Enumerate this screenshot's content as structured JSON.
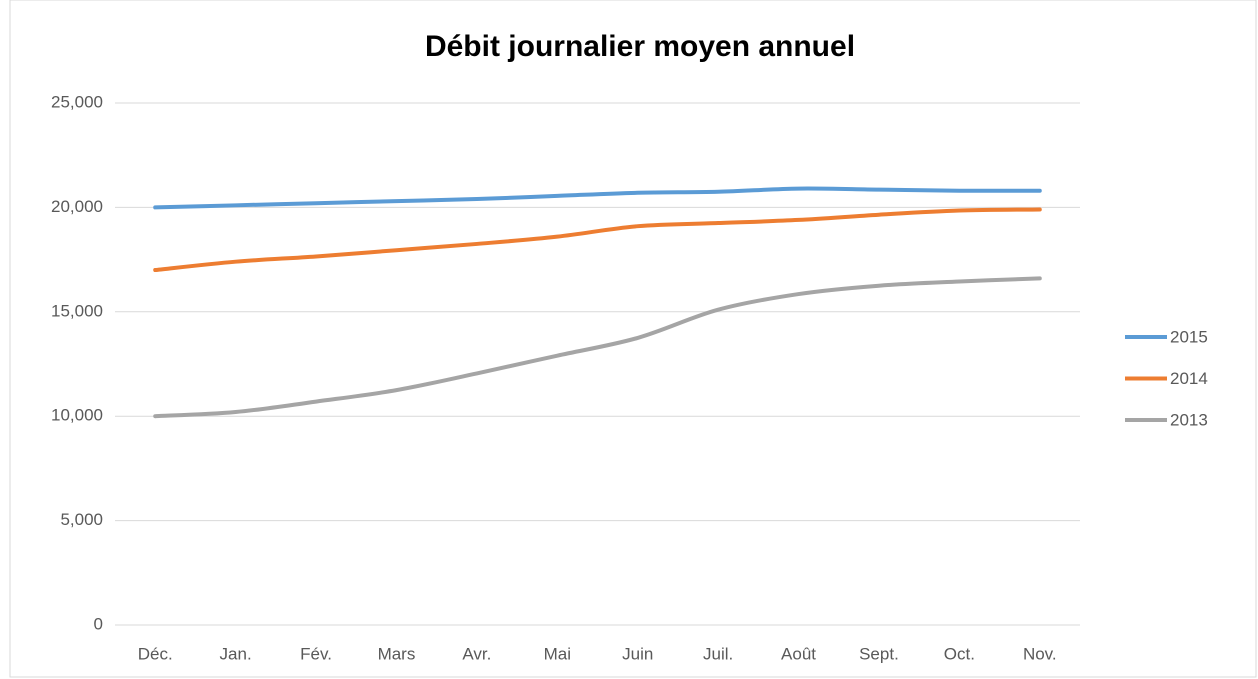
{
  "chart_data": {
    "type": "line",
    "title": "Débit journalier moyen annuel",
    "categories": [
      "Déc.",
      "Jan.",
      "Fév.",
      "Mars",
      "Avr.",
      "Mai",
      "Juin",
      "Juil.",
      "Août",
      "Sept.",
      "Oct.",
      "Nov."
    ],
    "series": [
      {
        "name": "2015",
        "color": "#5b9bd5",
        "values": [
          20000,
          20100,
          20200,
          20300,
          20400,
          20550,
          20700,
          20750,
          20900,
          20850,
          20800,
          20800
        ]
      },
      {
        "name": "2014",
        "color": "#ed7d31",
        "values": [
          17000,
          17400,
          17650,
          17950,
          18250,
          18600,
          19100,
          19250,
          19400,
          19650,
          19850,
          19900
        ]
      },
      {
        "name": "2013",
        "color": "#a5a5a5",
        "values": [
          10000,
          10200,
          10700,
          11250,
          12050,
          12900,
          13750,
          15100,
          15850,
          16250,
          16450,
          16600
        ]
      }
    ],
    "ylim": [
      0,
      25000
    ],
    "yticks": [
      0,
      {
        "value": 5000,
        "label": "5,000"
      },
      {
        "value": 10000,
        "label": "10,000"
      },
      {
        "value": 15000,
        "label": "15,000"
      },
      {
        "value": 20000,
        "label": "20,000"
      },
      {
        "value": 25000,
        "label": "25,000"
      }
    ],
    "grid": true,
    "legend": "right"
  }
}
